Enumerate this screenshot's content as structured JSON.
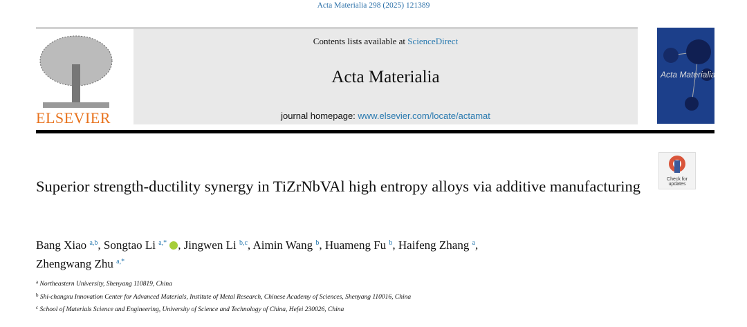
{
  "header": {
    "running_head": "Acta Materialia 298 (2025) 121389",
    "contents_prefix": "Contents lists available at ",
    "contents_link": "ScienceDirect",
    "journal_title": "Acta Materialia",
    "homepage_prefix": "journal homepage: ",
    "homepage_link": "www.elsevier.com/locate/actamat",
    "publisher": "ELSEVIER",
    "check_updates": [
      "Check for",
      "updates"
    ]
  },
  "article": {
    "title": "Superior strength-ductility synergy in TiZrNbVAl high entropy alloys via additive manufacturing",
    "authors": [
      {
        "name": "Bang Xiao",
        "sup": "a,b",
        "sep": ","
      },
      {
        "name": "Songtao Li",
        "sup": "a,*",
        "sep": ","
      },
      {
        "name": "Jingwen Li",
        "sup": "b,c",
        "sep": ","
      },
      {
        "name": "Aimin Wang",
        "sup": "b",
        "sep": ","
      },
      {
        "name": "Huameng Fu",
        "sup": "b",
        "sep": ","
      },
      {
        "name": "Haifeng Zhang",
        "sup": "a",
        "sep": ","
      },
      {
        "name": "Zhengwang Zhu",
        "sup": "a,*"
      }
    ],
    "affiliations": [
      {
        "mark": "a",
        "text": "Northeastern University, Shenyang 110819, China"
      },
      {
        "mark": "b",
        "text": "Shi-changxu Innovation Center for Advanced Materials, Institute of Metal Research, Chinese Academy of Sciences, Shenyang 110016, China"
      },
      {
        "mark": "c",
        "text": "School of Materials Science and Engineering, University of Science and Technology of China, Hefei 230026, China"
      }
    ]
  }
}
